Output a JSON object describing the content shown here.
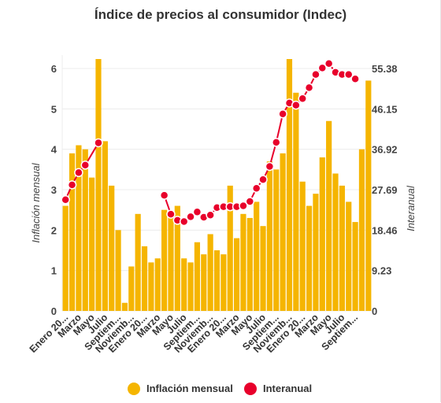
{
  "chart_data": {
    "type": "bar+line",
    "title": "Índice de precios al consumidor (Indec)",
    "y_left_label": "Inflación mensual",
    "y_right_label": "Interanual",
    "y_left_ticks": [
      "0",
      "1",
      "2",
      "3",
      "4",
      "5",
      "6"
    ],
    "y_right_ticks": [
      "0",
      "9.23",
      "18.46",
      "27.69",
      "36.92",
      "46.15",
      "55.38"
    ],
    "y_left_range": [
      0,
      6
    ],
    "y_right_range": [
      0,
      55.38
    ],
    "x_tick_labels": [
      "Enero 20...",
      "Marzo",
      "Mayo",
      "Julio",
      "Septiem...",
      "Noviemb...",
      "Enero 20...",
      "Marzo",
      "Mayo",
      "Julio",
      "Septiem...",
      "Noviemb...",
      "Enero 20...",
      "Marzo",
      "Mayo",
      "Julio",
      "Septiem...",
      "Noviemb...",
      "Enero 20...",
      "Marzo",
      "Mayo",
      "Julio",
      "Septiem..."
    ],
    "legend": [
      {
        "name": "Inflación mensual",
        "color": "#f5b500"
      },
      {
        "name": "Interanual",
        "color": "#e8002b"
      }
    ],
    "series": [
      {
        "name": "Inflación mensual",
        "kind": "bar",
        "axis": "left",
        "color": "#f5b500",
        "values": [
          2.6,
          3.9,
          4.1,
          4.0,
          3.3,
          6.5,
          4.2,
          3.1,
          2.0,
          0.2,
          1.1,
          2.4,
          1.6,
          1.2,
          1.3,
          2.5,
          2.4,
          2.6,
          1.3,
          1.2,
          1.7,
          1.4,
          1.9,
          1.5,
          1.4,
          3.1,
          1.8,
          2.4,
          2.3,
          2.7,
          2.1,
          3.7,
          3.5,
          3.9,
          6.5,
          5.4,
          3.2,
          2.6,
          2.9,
          3.8,
          4.7,
          3.4,
          3.1,
          2.7,
          2.2,
          4.0,
          5.7
        ]
      },
      {
        "name": "Interanual",
        "kind": "line",
        "axis": "right",
        "color": "#e8002b",
        "points": [
          [
            0,
            25.4
          ],
          [
            1,
            28.8
          ],
          [
            2,
            31.6
          ],
          [
            3,
            33.3
          ],
          [
            5,
            38.4
          ],
          [
            15,
            26.4
          ],
          [
            16,
            22.1
          ],
          [
            17,
            20.7
          ],
          [
            18,
            20.4
          ],
          [
            19,
            21.5
          ],
          [
            20,
            22.6
          ],
          [
            21,
            21.4
          ],
          [
            22,
            21.9
          ],
          [
            23,
            23.6
          ],
          [
            24,
            23.8
          ],
          [
            25,
            23.8
          ],
          [
            26,
            23.8
          ],
          [
            27,
            24.0
          ],
          [
            28,
            25.0
          ],
          [
            29,
            28.0
          ],
          [
            30,
            30.0
          ],
          [
            31,
            33.0
          ],
          [
            32,
            38.5
          ],
          [
            33,
            45.0
          ],
          [
            34,
            47.5
          ],
          [
            35,
            47.0
          ],
          [
            36,
            48.5
          ],
          [
            37,
            51.0
          ],
          [
            38,
            54.0
          ],
          [
            39,
            55.5
          ],
          [
            40,
            56.5
          ],
          [
            41,
            54.5
          ],
          [
            42,
            54.0
          ],
          [
            43,
            54.0
          ],
          [
            44,
            53.0
          ]
        ]
      }
    ]
  }
}
